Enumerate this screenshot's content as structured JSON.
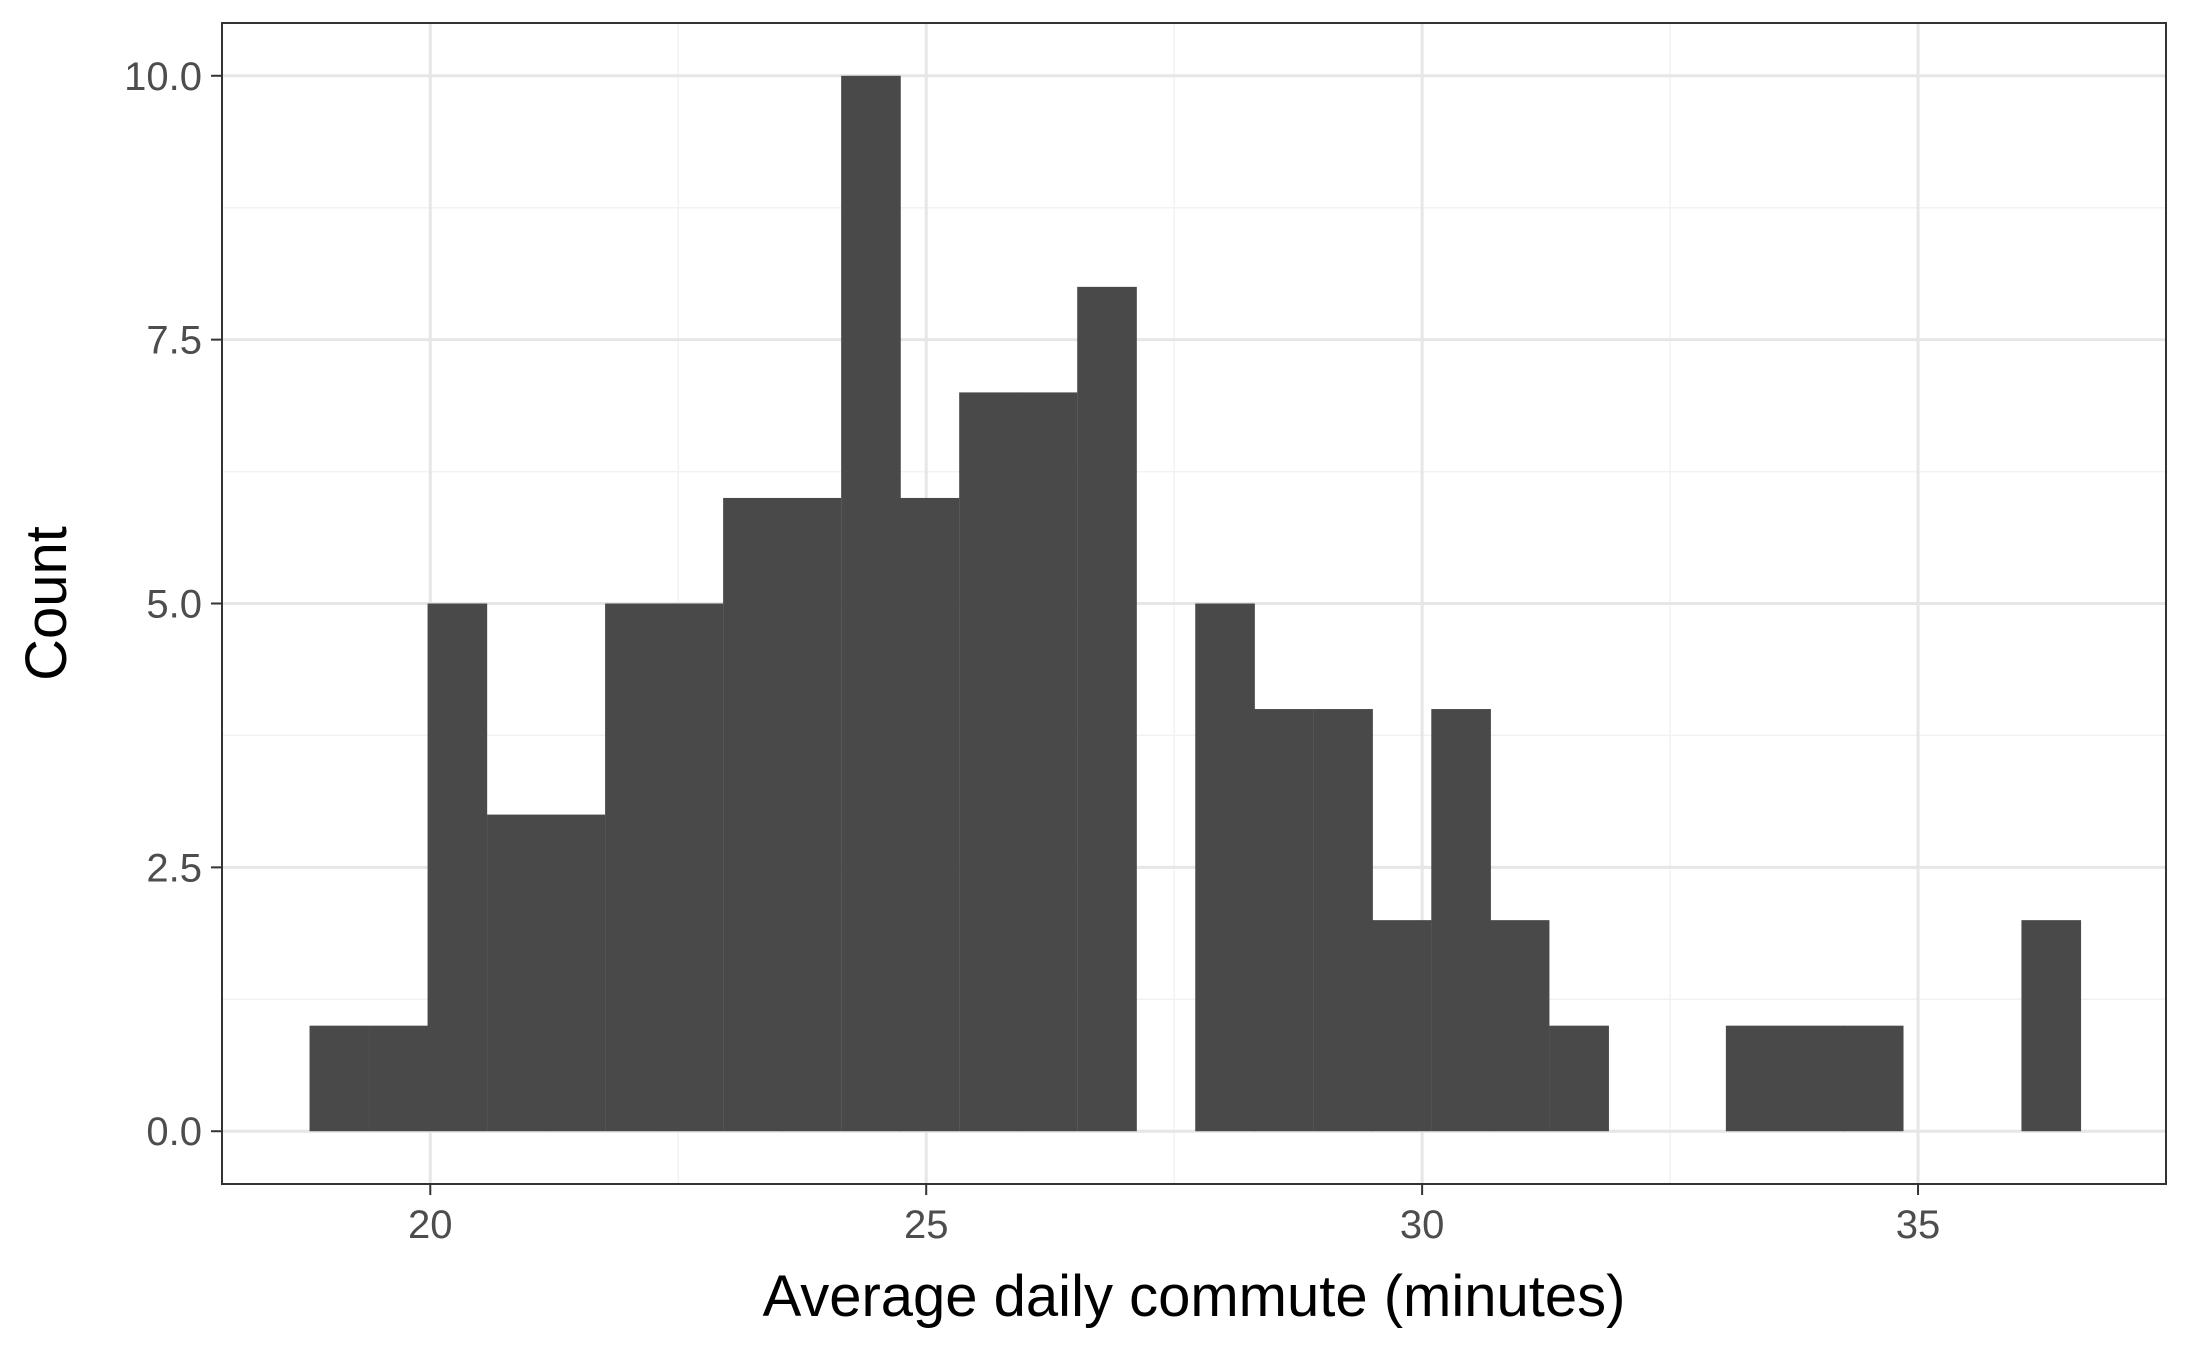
{
  "chart_data": {
    "type": "bar",
    "title": "",
    "xlabel": "Average daily commute (minutes)",
    "ylabel": "Count",
    "xlim": [
      17.9,
      37.5
    ],
    "ylim": [
      -0.5,
      10.5
    ],
    "grid": true,
    "x_ticks": [
      20,
      25,
      30,
      35
    ],
    "x_tick_labels": [
      "20",
      "25",
      "30",
      "35"
    ],
    "y_ticks": [
      0,
      2.5,
      5,
      7.5,
      10
    ],
    "y_tick_labels": [
      "0.0",
      "2.5",
      "5.0",
      "7.5",
      "10.0"
    ],
    "bin_width": 0.595,
    "bin_centers": [
      19.08,
      19.68,
      20.27,
      20.87,
      21.46,
      22.06,
      22.65,
      23.25,
      23.84,
      24.44,
      25.03,
      25.63,
      26.22,
      26.82,
      27.41,
      28.01,
      28.6,
      29.2,
      29.79,
      30.39,
      30.98,
      31.58,
      32.17,
      32.77,
      33.36,
      33.96,
      34.55,
      35.15,
      35.74,
      36.34
    ],
    "counts": [
      1,
      1,
      5,
      3,
      3,
      5,
      5,
      6,
      6,
      10,
      6,
      7,
      7,
      8,
      0,
      5,
      4,
      4,
      2,
      4,
      2,
      1,
      0,
      0,
      1,
      1,
      1,
      0,
      0,
      2
    ],
    "colors": {
      "bar": "#494949",
      "panel_border": "#333333",
      "grid_major": "#e6e6e6",
      "grid_minor": "#f2f2f2",
      "tick_label": "#4d4d4d",
      "axis_title": "#000000"
    }
  }
}
